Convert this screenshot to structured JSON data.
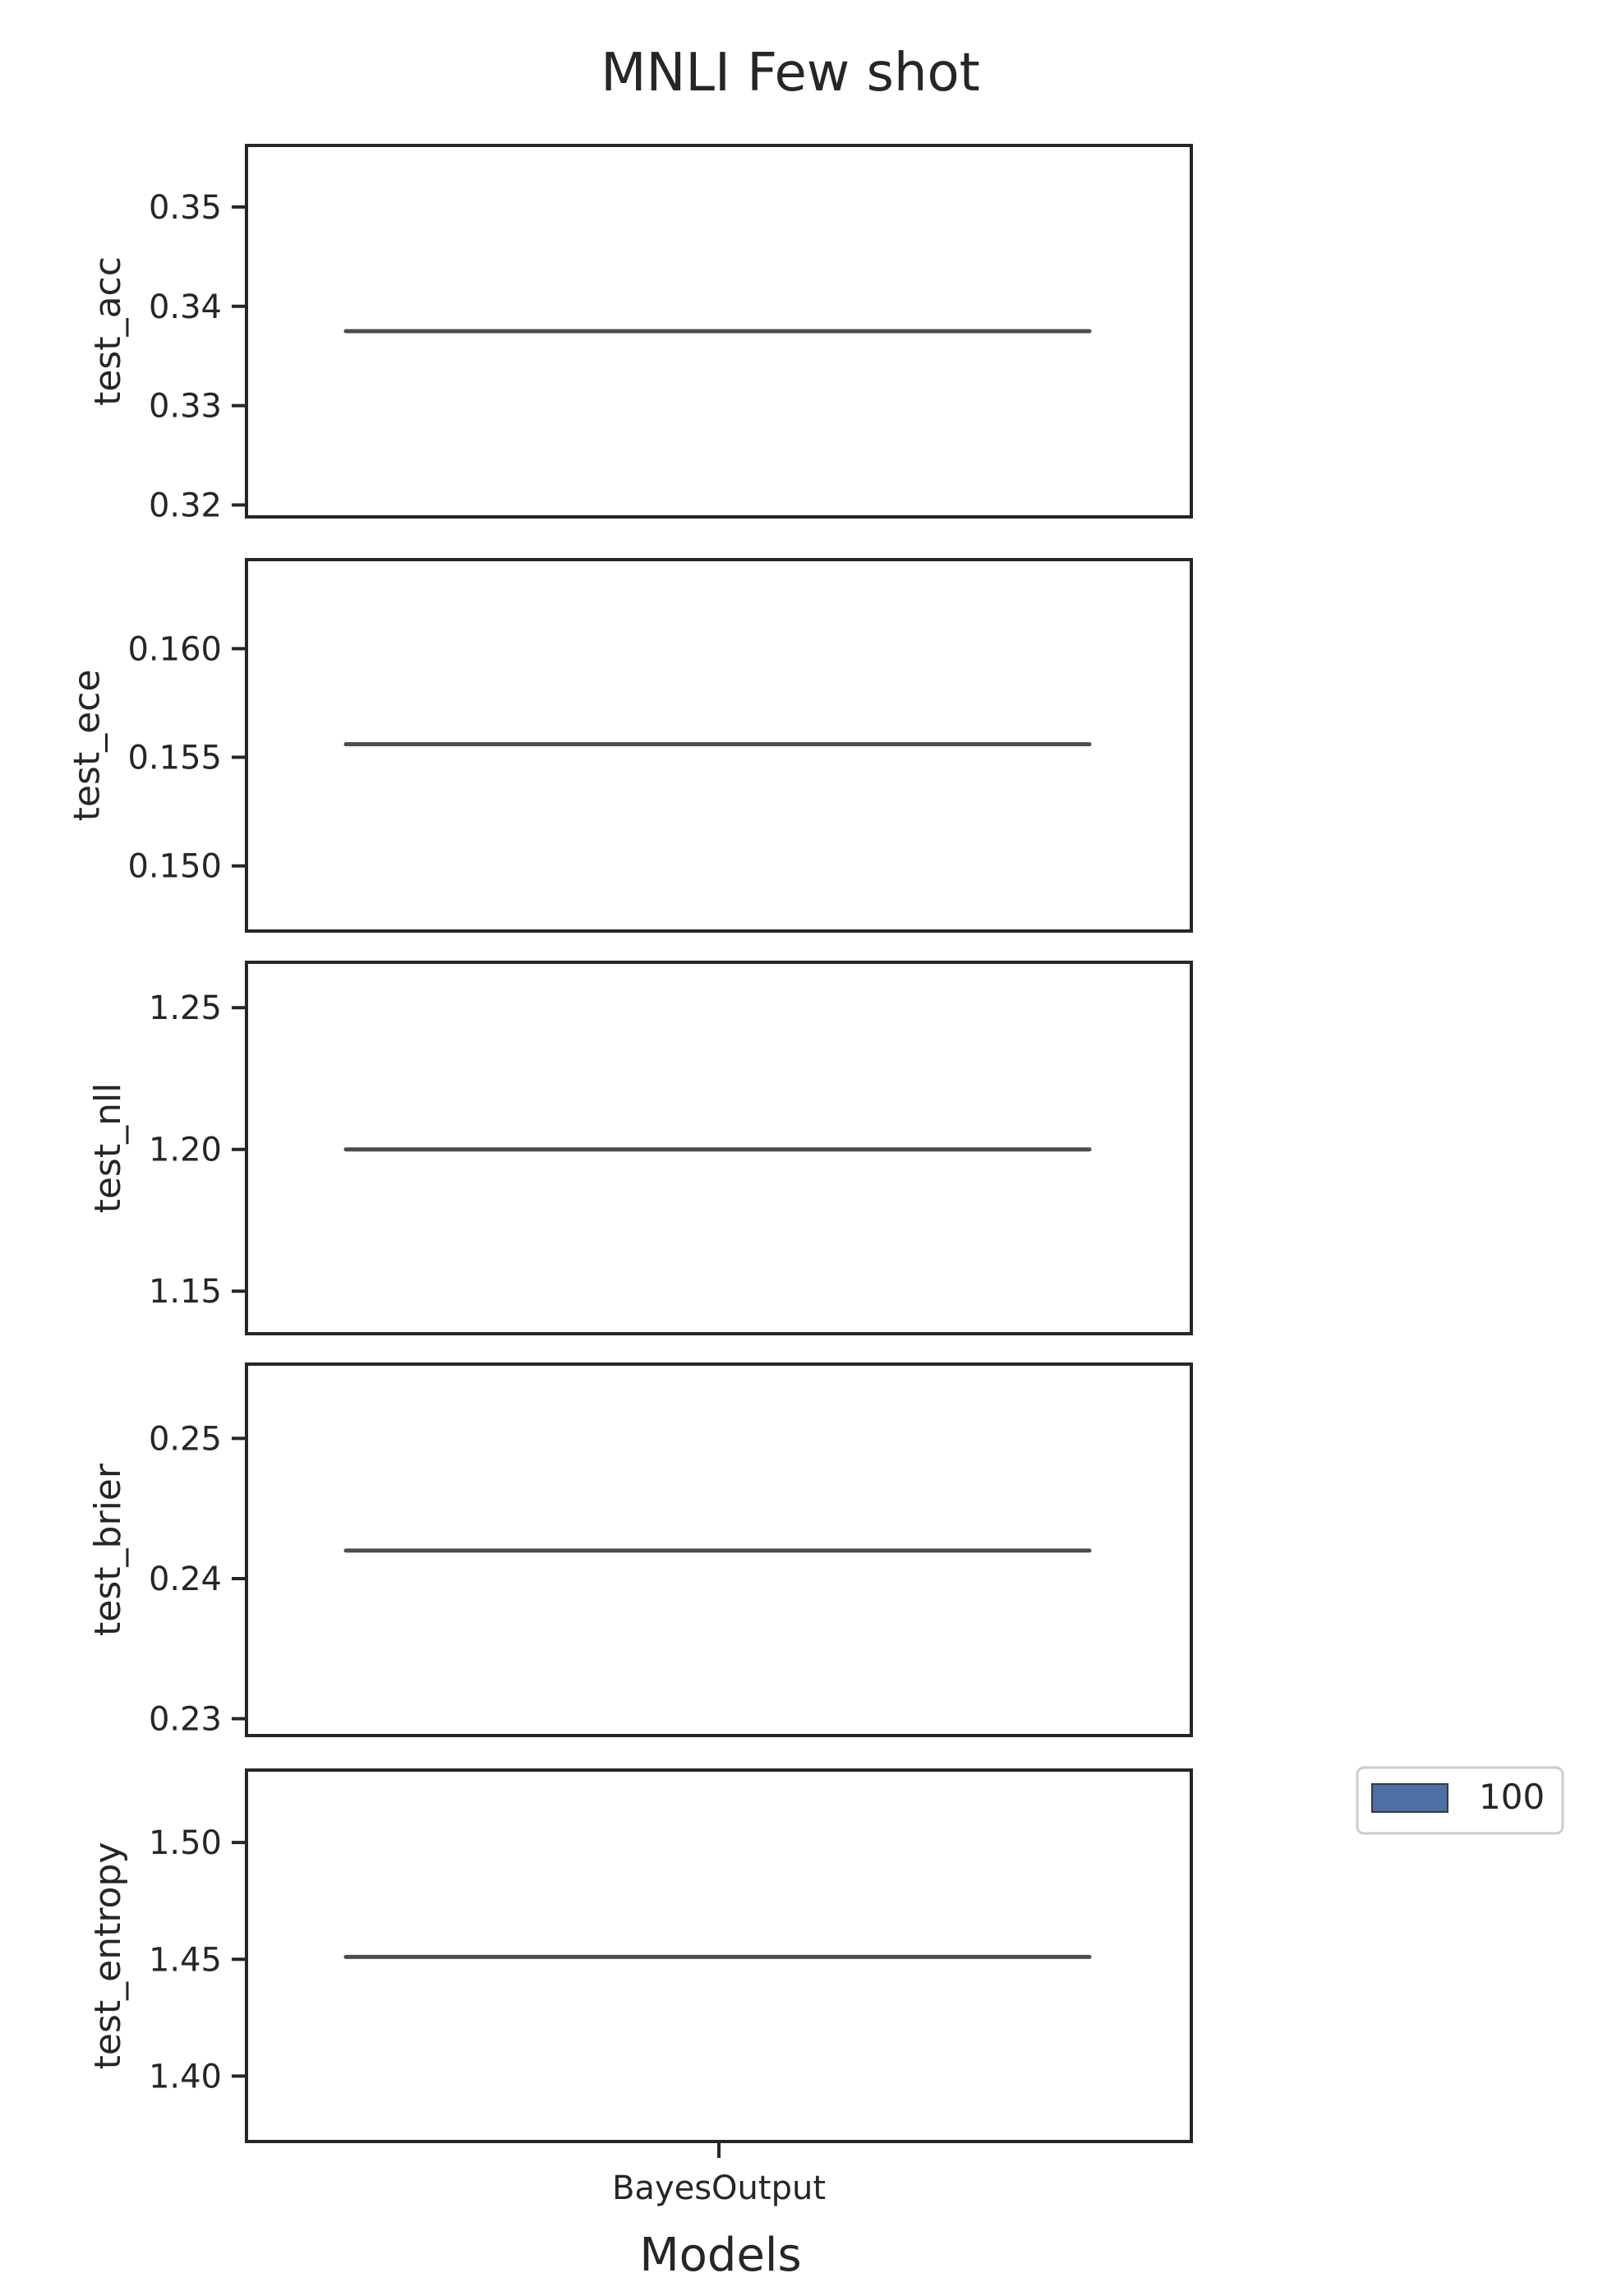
{
  "chart_data": {
    "type": "violin",
    "title": "MNLI Few shot",
    "xlabel": "Models",
    "categories": [
      "BayesOutput"
    ],
    "legend": {
      "placement": "right",
      "entries": [
        {
          "name": "100",
          "color": "#4c6fa5"
        }
      ]
    },
    "panels": [
      {
        "ylabel": "test_acc",
        "ylim": [
          0.3188,
          0.3562
        ],
        "yticks": [
          0.32,
          0.33,
          0.34,
          0.35
        ],
        "ytick_labels": [
          "0.32",
          "0.33",
          "0.34",
          "0.35"
        ],
        "series": [
          {
            "name": "100",
            "values": [
              0.3375
            ]
          }
        ]
      },
      {
        "ylabel": "test_ece",
        "ylim": [
          0.147,
          0.1641
        ],
        "yticks": [
          0.15,
          0.155,
          0.16
        ],
        "ytick_labels": [
          "0.150",
          "0.155",
          "0.160"
        ],
        "series": [
          {
            "name": "100",
            "values": [
              0.1556
            ]
          }
        ]
      },
      {
        "ylabel": "test_nll",
        "ylim": [
          1.135,
          1.266
        ],
        "yticks": [
          1.15,
          1.2,
          1.25
        ],
        "ytick_labels": [
          "1.15",
          "1.20",
          "1.25"
        ],
        "series": [
          {
            "name": "100",
            "values": [
              1.2
            ]
          }
        ]
      },
      {
        "ylabel": "test_brier",
        "ylim": [
          0.2288,
          0.2553
        ],
        "yticks": [
          0.23,
          0.24,
          0.25
        ],
        "ytick_labels": [
          "0.23",
          "0.24",
          "0.25"
        ],
        "series": [
          {
            "name": "100",
            "values": [
              0.242
            ]
          }
        ]
      },
      {
        "ylabel": "test_entropy",
        "ylim": [
          1.372,
          1.531
        ],
        "yticks": [
          1.4,
          1.45,
          1.5
        ],
        "ytick_labels": [
          "1.40",
          "1.45",
          "1.50"
        ],
        "series": [
          {
            "name": "100",
            "values": [
              1.451
            ]
          }
        ]
      }
    ]
  }
}
